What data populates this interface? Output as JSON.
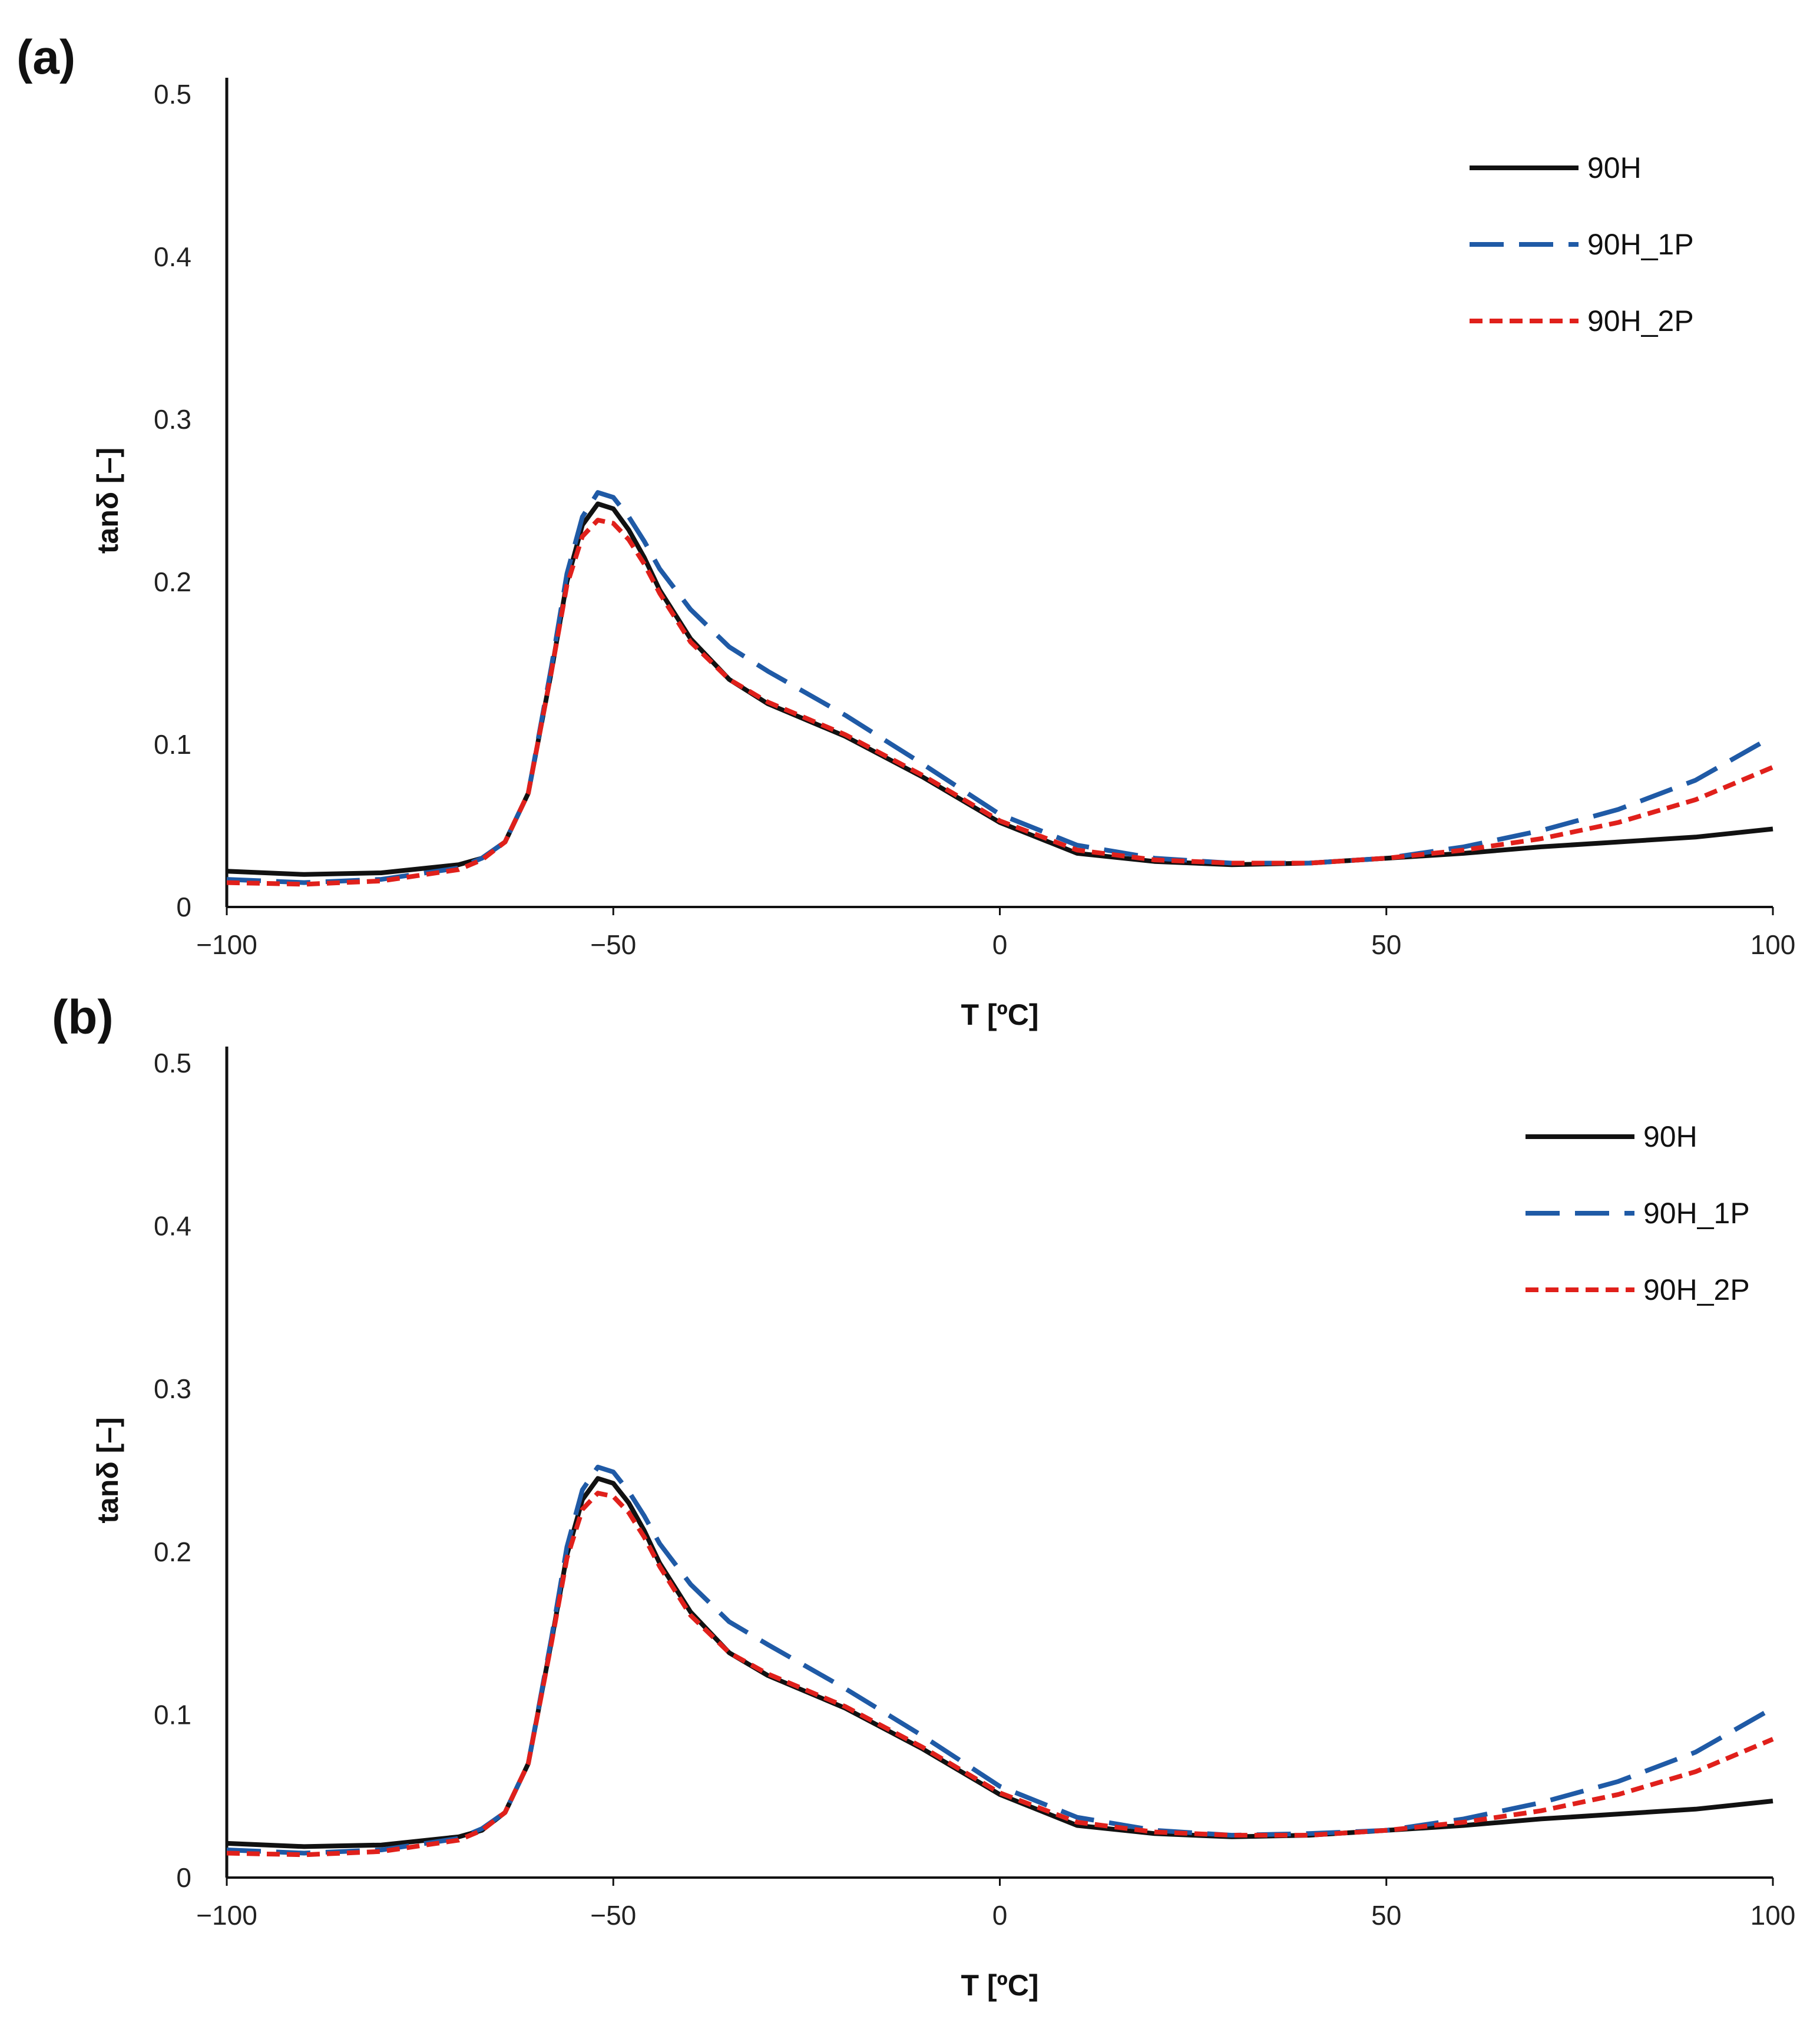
{
  "chart_data": [
    {
      "type": "line",
      "panel_label": "(a)",
      "xlabel": "T [ºC]",
      "ylabel": "tanδ [–]",
      "xlim": [
        -100,
        100
      ],
      "ylim": [
        0,
        0.5
      ],
      "xticks": [
        "−100",
        "−50",
        "0",
        "50",
        "100"
      ],
      "yticks": [
        "0",
        "0.1",
        "0.2",
        "0.3",
        "0.4",
        "0.5"
      ],
      "grid": false,
      "legend_position": "top-right",
      "series": [
        {
          "name": "90H",
          "color": "#111111",
          "dash": "solid",
          "x": [
            -100,
            -90,
            -80,
            -70,
            -67,
            -64,
            -61,
            -58,
            -56,
            -54,
            -52,
            -50,
            -48,
            -46,
            -44,
            -40,
            -35,
            -30,
            -20,
            -10,
            0,
            10,
            20,
            30,
            40,
            50,
            60,
            70,
            80,
            90,
            100
          ],
          "y": [
            0.022,
            0.02,
            0.021,
            0.026,
            0.03,
            0.04,
            0.07,
            0.145,
            0.2,
            0.235,
            0.248,
            0.245,
            0.232,
            0.215,
            0.195,
            0.165,
            0.14,
            0.125,
            0.105,
            0.08,
            0.052,
            0.033,
            0.028,
            0.026,
            0.027,
            0.03,
            0.033,
            0.037,
            0.04,
            0.043,
            0.048
          ]
        },
        {
          "name": "90H_1P",
          "color": "#1f5aa6",
          "dash": "long",
          "x": [
            -100,
            -90,
            -80,
            -70,
            -67,
            -64,
            -61,
            -58,
            -56,
            -54,
            -52,
            -50,
            -48,
            -46,
            -44,
            -40,
            -35,
            -30,
            -20,
            -10,
            0,
            10,
            20,
            30,
            40,
            50,
            60,
            70,
            80,
            90,
            100
          ],
          "y": [
            0.017,
            0.015,
            0.017,
            0.024,
            0.03,
            0.04,
            0.07,
            0.148,
            0.205,
            0.24,
            0.255,
            0.252,
            0.24,
            0.225,
            0.208,
            0.183,
            0.16,
            0.145,
            0.118,
            0.088,
            0.057,
            0.038,
            0.03,
            0.027,
            0.027,
            0.03,
            0.037,
            0.047,
            0.06,
            0.078,
            0.105
          ]
        },
        {
          "name": "90H_2P",
          "color": "#e0201b",
          "dash": "short",
          "x": [
            -100,
            -90,
            -80,
            -70,
            -67,
            -64,
            -61,
            -58,
            -56,
            -54,
            -52,
            -50,
            -48,
            -46,
            -44,
            -40,
            -35,
            -30,
            -20,
            -10,
            0,
            10,
            20,
            30,
            40,
            50,
            60,
            70,
            80,
            90,
            100
          ],
          "y": [
            0.015,
            0.014,
            0.016,
            0.023,
            0.029,
            0.04,
            0.07,
            0.145,
            0.198,
            0.228,
            0.238,
            0.236,
            0.226,
            0.211,
            0.193,
            0.163,
            0.14,
            0.126,
            0.106,
            0.081,
            0.053,
            0.035,
            0.029,
            0.027,
            0.027,
            0.03,
            0.035,
            0.042,
            0.052,
            0.066,
            0.086
          ]
        }
      ]
    },
    {
      "type": "line",
      "panel_label": "(b)",
      "xlabel": "T [ºC]",
      "ylabel": "tanδ [–]",
      "xlim": [
        -100,
        100
      ],
      "ylim": [
        0,
        0.5
      ],
      "xticks": [
        "−100",
        "−50",
        "0",
        "50",
        "100"
      ],
      "yticks": [
        "0",
        "0.1",
        "0.2",
        "0.3",
        "0.4",
        "0.5"
      ],
      "grid": false,
      "legend_position": "top-right",
      "series": [
        {
          "name": "90H",
          "color": "#111111",
          "dash": "solid",
          "x": [
            -100,
            -90,
            -80,
            -70,
            -67,
            -64,
            -61,
            -58,
            -56,
            -54,
            -52,
            -50,
            -48,
            -46,
            -44,
            -40,
            -35,
            -30,
            -20,
            -10,
            0,
            10,
            20,
            30,
            40,
            50,
            60,
            70,
            80,
            90,
            100
          ],
          "y": [
            0.021,
            0.019,
            0.02,
            0.025,
            0.029,
            0.04,
            0.07,
            0.145,
            0.198,
            0.232,
            0.245,
            0.242,
            0.23,
            0.213,
            0.193,
            0.163,
            0.138,
            0.124,
            0.104,
            0.079,
            0.051,
            0.032,
            0.027,
            0.025,
            0.026,
            0.029,
            0.032,
            0.036,
            0.039,
            0.042,
            0.047
          ]
        },
        {
          "name": "90H_1P",
          "color": "#1f5aa6",
          "dash": "long",
          "x": [
            -100,
            -90,
            -80,
            -70,
            -67,
            -64,
            -61,
            -58,
            -56,
            -54,
            -52,
            -50,
            -48,
            -46,
            -44,
            -40,
            -35,
            -30,
            -20,
            -10,
            0,
            10,
            20,
            30,
            40,
            50,
            60,
            70,
            80,
            90,
            100
          ],
          "y": [
            0.017,
            0.015,
            0.017,
            0.024,
            0.03,
            0.04,
            0.07,
            0.147,
            0.203,
            0.238,
            0.252,
            0.249,
            0.237,
            0.222,
            0.205,
            0.18,
            0.157,
            0.143,
            0.116,
            0.087,
            0.056,
            0.037,
            0.029,
            0.026,
            0.027,
            0.029,
            0.036,
            0.046,
            0.059,
            0.077,
            0.104
          ]
        },
        {
          "name": "90H_2P",
          "color": "#e0201b",
          "dash": "short",
          "x": [
            -100,
            -90,
            -80,
            -70,
            -67,
            -64,
            -61,
            -58,
            -56,
            -54,
            -52,
            -50,
            -48,
            -46,
            -44,
            -40,
            -35,
            -30,
            -20,
            -10,
            0,
            10,
            20,
            30,
            40,
            50,
            60,
            70,
            80,
            90,
            100
          ],
          "y": [
            0.015,
            0.014,
            0.016,
            0.023,
            0.029,
            0.04,
            0.07,
            0.144,
            0.196,
            0.226,
            0.236,
            0.234,
            0.224,
            0.209,
            0.191,
            0.161,
            0.138,
            0.125,
            0.105,
            0.08,
            0.052,
            0.034,
            0.028,
            0.026,
            0.026,
            0.029,
            0.034,
            0.041,
            0.051,
            0.065,
            0.085
          ]
        }
      ]
    }
  ]
}
